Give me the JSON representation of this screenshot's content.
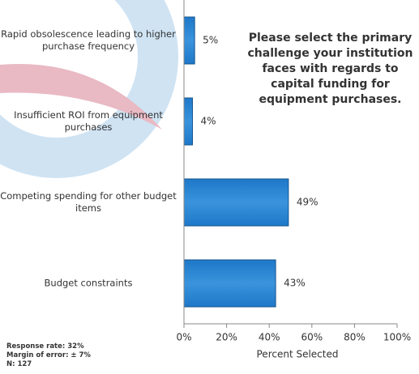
{
  "chart_data": {
    "type": "hbar",
    "title": "Please select the primary challenge your institution faces with regards to capital funding for equipment purchases.",
    "categories": [
      "Rapid obsolescence leading to higher purchase frequency",
      "Insufficient ROI from equipment purchases",
      "Competing spending for other budget items",
      "Budget constraints"
    ],
    "values": [
      5,
      4,
      49,
      43
    ],
    "value_labels": [
      "5%",
      "4%",
      "49%",
      "43%"
    ],
    "color": "#1f78c8",
    "xlabel": "Percent Selected",
    "xlim": [
      0,
      100
    ],
    "xticks": [
      {
        "value": 0,
        "label": "0%"
      },
      {
        "value": 20,
        "label": "20%"
      },
      {
        "value": 40,
        "label": "40%"
      },
      {
        "value": 60,
        "label": "60%"
      },
      {
        "value": 80,
        "label": "80%"
      },
      {
        "value": 100,
        "label": "100%"
      }
    ],
    "notes": [
      "Response rate: 32%",
      "Margin of error: ± 7%",
      "N: 127"
    ]
  }
}
